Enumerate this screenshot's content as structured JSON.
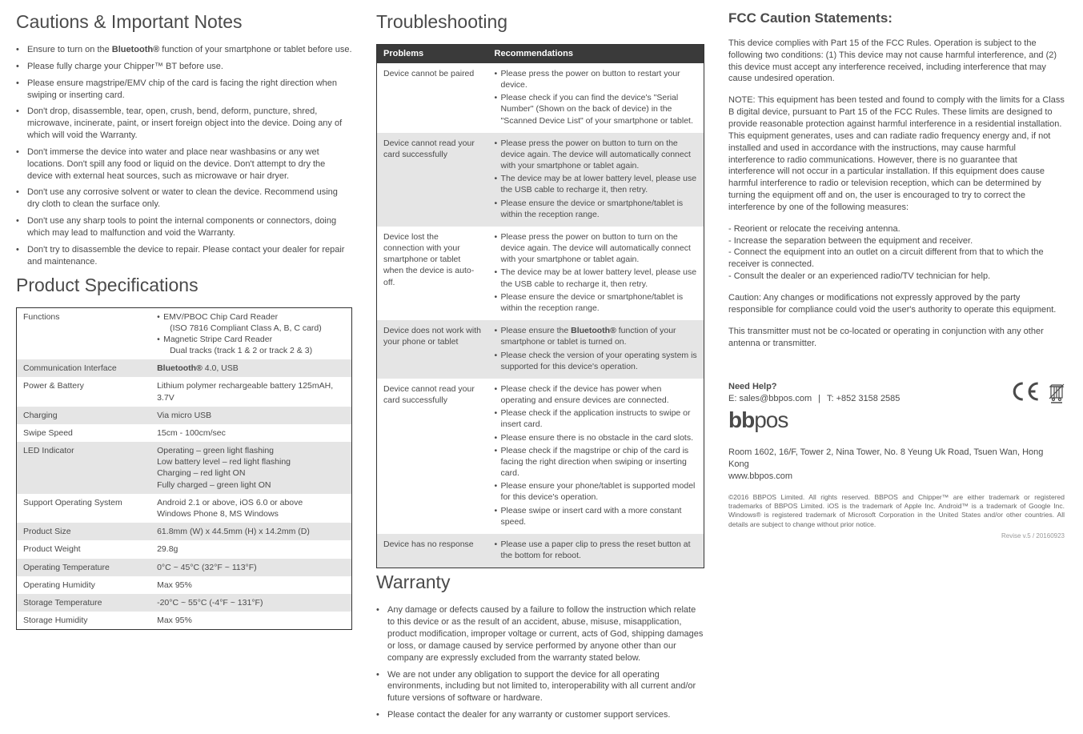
{
  "cautions": {
    "title": "Cautions & Important Notes",
    "items": [
      "Ensure to turn on the <b>Bluetooth®</b> function of your smartphone or tablet before use.",
      "Please fully charge your Chipper™ BT before use.",
      "Please ensure magstripe/EMV chip of the card is facing the right direction when swiping or inserting card.",
      "Don't drop, disassemble, tear, open, crush, bend, deform, puncture, shred, microwave, incinerate, paint, or insert foreign object into the device. Doing any of which will void the Warranty.",
      "Don't immerse the device into water and place near washbasins or any wet locations. Don't spill any food or liquid on the device. Don't attempt to dry the device with external heat sources, such as microwave or hair dryer.",
      "Don't use any corrosive solvent or water to clean the device. Recommend using dry cloth to clean the surface only.",
      "Don't use any sharp tools to point the internal components or connectors, doing which may lead to malfunction and void the Warranty.",
      "Don't try to disassemble the device to repair. Please contact your dealer for repair and maintenance."
    ]
  },
  "specs": {
    "title": "Product Specifications",
    "rows": [
      {
        "label": "Functions",
        "value_list": [
          "EMV/PBOC Chip Card Reader",
          "  (ISO 7816 Compliant Class A, B, C card)",
          "Magnetic Stripe Card Reader",
          "  Dual tracks (track 1 & 2 or track 2 & 3)"
        ]
      },
      {
        "label": "Communication Interface",
        "value_html": "<b>Bluetooth®</b> 4.0, USB"
      },
      {
        "label": "Power & Battery",
        "value": "Lithium polymer rechargeable battery 125mAH, 3.7V"
      },
      {
        "label": "Charging",
        "value": "Via micro USB"
      },
      {
        "label": "Swipe Speed",
        "value": "15cm - 100cm/sec"
      },
      {
        "label": "LED Indicator",
        "value_lines": [
          "Operating – green light flashing",
          "Low battery  level – red light flashing",
          "Charging – red light ON",
          "Fully charged – green light ON"
        ]
      },
      {
        "label": "Support Operating System",
        "value_lines": [
          "Android 2.1 or above, iOS 6.0 or above",
          "Windows Phone 8, MS Windows"
        ]
      },
      {
        "label": "Product Size",
        "value": "61.8mm (W) x 44.5mm (H) x 14.2mm (D)"
      },
      {
        "label": "Product Weight",
        "value": "29.8g"
      },
      {
        "label": "Operating Temperature",
        "value": "0°C ~ 45°C (32°F ~ 113°F)"
      },
      {
        "label": "Operating Humidity",
        "value": "Max 95%"
      },
      {
        "label": "Storage Temperature",
        "value": "-20°C ~ 55°C (-4°F ~ 131°F)"
      },
      {
        "label": "Storage Humidity",
        "value": "Max 95%"
      }
    ]
  },
  "troubleshooting": {
    "title": "Troubleshooting",
    "header": {
      "problems": "Problems",
      "recommendations": "Recommendations"
    },
    "rows": [
      {
        "problem": "Device cannot be paired",
        "recs": [
          "Please press the power on button to restart your device.",
          "Please check if you can find the device's \"Serial Number\" (Shown on the back of device) in the \"Scanned Device List\" of your smartphone or tablet."
        ]
      },
      {
        "problem": "Device cannot read your card successfully",
        "recs": [
          "Please press the power on button to turn on the device again. The device will automatically connect with your smartphone or tablet again.",
          "The device may be at lower battery level, please use the USB cable to recharge it, then retry.",
          "Please ensure the device or smartphone/tablet is within the reception range."
        ]
      },
      {
        "problem": "Device lost the connection with your smartphone or tablet when the device is auto-off.",
        "recs": [
          "Please press the power on button to turn on the device again. The device will automatically connect with your smartphone or tablet again.",
          "The device may be at lower battery level, please use the USB cable to recharge it, then retry.",
          "Please ensure the device or smartphone/tablet is within the reception range."
        ]
      },
      {
        "problem": "Device does not work with your phone or tablet",
        "recs": [
          "Please ensure the <b>Bluetooth®</b> function of your smartphone or tablet is turned on.",
          "Please check the version of your operating system is supported for this device's operation."
        ]
      },
      {
        "problem": "Device cannot read your card successfully",
        "recs": [
          "Please check if the device has power when operating and ensure devices are connected.",
          "Please check if the application instructs to swipe or insert card.",
          "Please ensure there is no obstacle in the card slots.",
          "Please check if the magstripe or chip of the card is facing the right direction when swiping or inserting card.",
          "Please ensure your phone/tablet is supported model for this device's operation.",
          "Please swipe or insert card with a more constant speed."
        ]
      },
      {
        "problem": "Device has no response",
        "recs": [
          "Please use a paper clip to press the reset button at the bottom for reboot."
        ]
      }
    ]
  },
  "warranty": {
    "title": "Warranty",
    "items": [
      "Any damage or defects caused by a failure to follow the instruction which relate to this device or as the result of an accident, abuse, misuse, misapplication, product modification, improper voltage or current, acts of God, shipping damages or loss, or damage caused by service performed by anyone other than our company are expressly excluded from the warranty stated below.",
      "We are not under any obligation to support the device for all operating environments, including but not limited to, interoperability with all current and/or future versions of software or hardware.",
      "Please contact the dealer for any warranty or customer support services."
    ]
  },
  "fcc": {
    "title": "FCC Caution Statements:",
    "p1": "This device complies with Part 15 of the FCC Rules. Operation is subject to the following two conditions: (1) This device may not cause harmful interference, and (2) this device must accept any interference received, including interference that may cause undesired operation.",
    "p2": "NOTE: This equipment has been tested and found to comply with the limits for a Class B digital device, pursuant to Part 15 of the FCC Rules.  These limits are designed to provide reasonable protection against harmful interference in a residential installation. This equipment generates, uses and can radiate radio frequency energy and, if not installed and used in accordance with the instructions, may cause harmful interference to radio communications. However, there is no guarantee that interference will not occur in a particular installation.  If this equipment does cause harmful interference to radio or television reception, which can be determined by turning the equipment off and on, the user is encouraged to try to correct the interference by one of the following measures:",
    "measures": [
      "- Reorient or relocate the receiving antenna.",
      "- Increase the separation between the equipment and receiver.",
      "- Connect the equipment into an outlet on a circuit different from that to which the",
      "   receiver is connected.",
      "- Consult the dealer or an experienced radio/TV technician for help."
    ],
    "p3": "Caution: Any changes or modifications not expressly approved by the party responsible for compliance could void the user's authority to operate this equipment.",
    "p4": "This transmitter must not be co-located or operating in conjunction with any other antenna or transmitter."
  },
  "footer": {
    "need_help": "Need Help?",
    "email": "E: sales@bbpos.com",
    "sep": "|",
    "tel": "T: +852 3158 2585",
    "logo": "bbpos",
    "address1": "Room 1602, 16/F, Tower 2, Nina Tower, No. 8 Yeung Uk Road, Tsuen Wan, Hong Kong",
    "address2": "www.bbpos.com",
    "legal": "©2016 BBPOS Limited. All rights reserved. BBPOS and Chipper™ are either trademark or registered trademarks of BBPOS Limited. iOS is the trademark of Apple Inc. Android™ is a trademark of Google Inc. Windows® is registered trademark of Microsoft Corporation in the United States and/or other countries. All details are subject to change without prior notice.",
    "revise": "Revise v.5 / 20160923"
  }
}
